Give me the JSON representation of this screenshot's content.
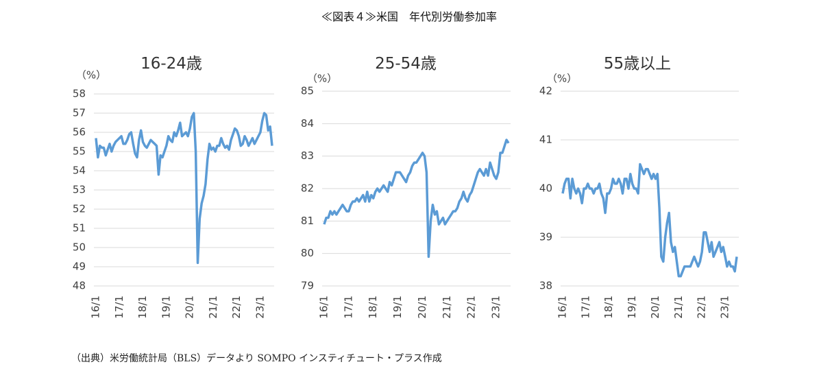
{
  "header": {
    "title": "≪図表４≫米国　年代別労働参加率"
  },
  "footer": {
    "source": "（出典）米労働統計局（BLS）データより SOMPO インスティチュート・プラス作成"
  },
  "chart_data": [
    {
      "type": "line",
      "title": "16-24歳",
      "y_label": "（%）",
      "color": "#5b9bd5",
      "grid": true,
      "ylim": [
        48,
        58
      ],
      "yticks": [
        48,
        49,
        50,
        51,
        52,
        53,
        54,
        55,
        56,
        57,
        58
      ],
      "categories": [
        "16/1",
        null,
        null,
        null,
        null,
        null,
        null,
        null,
        null,
        null,
        null,
        null,
        "17/1",
        null,
        null,
        null,
        null,
        null,
        null,
        null,
        null,
        null,
        null,
        null,
        "18/1",
        null,
        null,
        null,
        null,
        null,
        null,
        null,
        null,
        null,
        null,
        null,
        "19/1",
        null,
        null,
        null,
        null,
        null,
        null,
        null,
        null,
        null,
        null,
        null,
        "20/1",
        null,
        null,
        null,
        null,
        null,
        null,
        null,
        null,
        null,
        null,
        null,
        "21/1",
        null,
        null,
        null,
        null,
        null,
        null,
        null,
        null,
        null,
        null,
        null,
        "22/1",
        null,
        null,
        null,
        null,
        null,
        null,
        null,
        null,
        null,
        null,
        null,
        "23/1",
        null,
        null,
        null,
        null,
        null,
        null
      ],
      "values": [
        55.7,
        54.7,
        55.3,
        55.2,
        55.2,
        54.8,
        55.1,
        55.4,
        55.0,
        55.3,
        55.5,
        55.6,
        55.7,
        55.8,
        55.4,
        55.4,
        55.6,
        55.9,
        56.0,
        55.4,
        54.9,
        54.7,
        55.6,
        56.1,
        55.5,
        55.3,
        55.2,
        55.4,
        55.6,
        55.5,
        55.4,
        55.3,
        53.8,
        54.8,
        54.7,
        55.0,
        55.3,
        55.8,
        55.6,
        55.5,
        56.0,
        55.8,
        56.1,
        56.5,
        55.8,
        55.9,
        56.0,
        55.8,
        56.2,
        56.8,
        57.0,
        55.0,
        49.2,
        51.5,
        52.3,
        52.7,
        53.3,
        54.6,
        55.4,
        55.1,
        55.2,
        55.0,
        55.3,
        55.3,
        55.7,
        55.4,
        55.2,
        55.3,
        55.1,
        55.6,
        55.9,
        56.2,
        56.1,
        55.8,
        55.3,
        55.4,
        55.8,
        55.6,
        55.3,
        55.5,
        55.7,
        55.4,
        55.6,
        55.8,
        56.0,
        56.6,
        57.0,
        56.9,
        56.1,
        56.3,
        55.3
      ]
    },
    {
      "type": "line",
      "title": "25-54歳",
      "y_label": "（%）",
      "color": "#5b9bd5",
      "grid": true,
      "ylim": [
        79,
        85
      ],
      "yticks": [
        79,
        80,
        81,
        82,
        83,
        84,
        85
      ],
      "categories": [
        "16/1",
        null,
        null,
        null,
        null,
        null,
        null,
        null,
        null,
        null,
        null,
        null,
        "17/1",
        null,
        null,
        null,
        null,
        null,
        null,
        null,
        null,
        null,
        null,
        null,
        "18/1",
        null,
        null,
        null,
        null,
        null,
        null,
        null,
        null,
        null,
        null,
        null,
        "19/1",
        null,
        null,
        null,
        null,
        null,
        null,
        null,
        null,
        null,
        null,
        null,
        "20/1",
        null,
        null,
        null,
        null,
        null,
        null,
        null,
        null,
        null,
        null,
        null,
        "21/1",
        null,
        null,
        null,
        null,
        null,
        null,
        null,
        null,
        null,
        null,
        null,
        "22/1",
        null,
        null,
        null,
        null,
        null,
        null,
        null,
        null,
        null,
        null,
        null,
        "23/1",
        null,
        null,
        null,
        null,
        null,
        null
      ],
      "values": [
        80.9,
        81.1,
        81.1,
        81.3,
        81.2,
        81.3,
        81.2,
        81.3,
        81.4,
        81.5,
        81.4,
        81.3,
        81.3,
        81.5,
        81.6,
        81.6,
        81.7,
        81.6,
        81.7,
        81.8,
        81.6,
        81.9,
        81.6,
        81.8,
        81.7,
        81.9,
        82.0,
        81.9,
        82.0,
        82.1,
        82.0,
        81.9,
        82.2,
        82.1,
        82.3,
        82.5,
        82.5,
        82.5,
        82.4,
        82.3,
        82.2,
        82.4,
        82.5,
        82.7,
        82.8,
        82.8,
        82.9,
        83.0,
        83.1,
        83.0,
        82.5,
        79.9,
        81.0,
        81.5,
        81.2,
        81.3,
        80.9,
        81.0,
        81.1,
        80.9,
        81.0,
        81.1,
        81.2,
        81.3,
        81.3,
        81.4,
        81.6,
        81.7,
        81.9,
        81.7,
        81.6,
        81.8,
        81.9,
        82.1,
        82.3,
        82.5,
        82.6,
        82.5,
        82.4,
        82.6,
        82.4,
        82.8,
        82.6,
        82.4,
        82.3,
        82.5,
        83.1,
        83.1,
        83.3,
        83.5,
        83.4
      ]
    },
    {
      "type": "line",
      "title": "55歳以上",
      "y_label": "（%）",
      "color": "#5b9bd5",
      "grid": true,
      "ylim": [
        38,
        42
      ],
      "yticks": [
        38,
        39,
        40,
        41,
        42
      ],
      "categories": [
        "16/1",
        null,
        null,
        null,
        null,
        null,
        null,
        null,
        null,
        null,
        null,
        null,
        "17/1",
        null,
        null,
        null,
        null,
        null,
        null,
        null,
        null,
        null,
        null,
        null,
        "18/1",
        null,
        null,
        null,
        null,
        null,
        null,
        null,
        null,
        null,
        null,
        null,
        "19/1",
        null,
        null,
        null,
        null,
        null,
        null,
        null,
        null,
        null,
        null,
        null,
        "20/1",
        null,
        null,
        null,
        null,
        null,
        null,
        null,
        null,
        null,
        null,
        null,
        "21/1",
        null,
        null,
        null,
        null,
        null,
        null,
        null,
        null,
        null,
        null,
        null,
        "22/1",
        null,
        null,
        null,
        null,
        null,
        null,
        null,
        null,
        null,
        null,
        null,
        "23/1",
        null,
        null,
        null,
        null,
        null,
        null
      ],
      "values": [
        39.9,
        40.1,
        40.2,
        40.2,
        39.8,
        40.2,
        40.0,
        39.9,
        40.0,
        39.9,
        39.7,
        40.0,
        40.0,
        40.1,
        40.0,
        40.0,
        39.9,
        40.0,
        40.0,
        40.1,
        39.9,
        39.8,
        39.5,
        39.9,
        39.9,
        40.0,
        40.2,
        40.1,
        40.1,
        40.2,
        40.1,
        39.9,
        40.2,
        40.2,
        40.0,
        40.3,
        40.1,
        40.0,
        40.0,
        39.9,
        40.5,
        40.4,
        40.3,
        40.4,
        40.4,
        40.3,
        40.2,
        40.3,
        40.2,
        40.3,
        39.6,
        38.6,
        38.5,
        39.0,
        39.3,
        39.5,
        38.9,
        38.7,
        38.8,
        38.5,
        38.2,
        38.2,
        38.3,
        38.4,
        38.4,
        38.4,
        38.4,
        38.5,
        38.6,
        38.5,
        38.4,
        38.5,
        38.7,
        39.1,
        39.1,
        38.9,
        38.7,
        38.9,
        38.6,
        38.7,
        38.8,
        38.9,
        38.7,
        38.8,
        38.6,
        38.4,
        38.5,
        38.4,
        38.4,
        38.3,
        38.6
      ]
    }
  ]
}
